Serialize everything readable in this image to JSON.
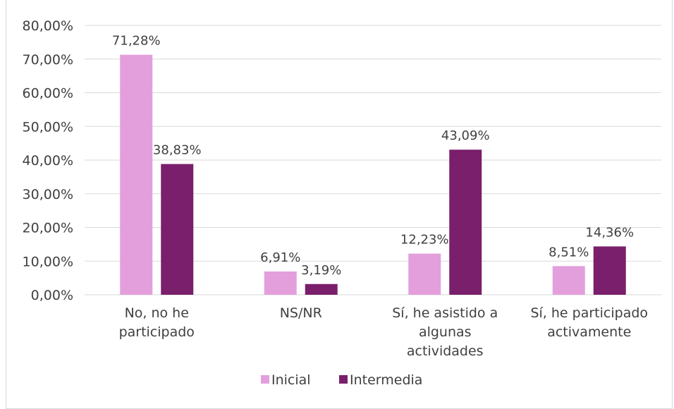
{
  "top_caption": "",
  "chart_data": {
    "type": "bar",
    "title": "",
    "xlabel": "",
    "ylabel": "",
    "ylim": [
      0,
      80
    ],
    "yticks": [
      "0,00%",
      "10,00%",
      "20,00%",
      "30,00%",
      "40,00%",
      "50,00%",
      "60,00%",
      "70,00%",
      "80,00%"
    ],
    "grid": true,
    "legend_position": "bottom",
    "categories": [
      [
        "No, no he",
        "participado"
      ],
      [
        "NS/NR"
      ],
      [
        "Sí, he asistido a",
        "algunas",
        "actividades"
      ],
      [
        "Sí, he participado",
        "activamente"
      ]
    ],
    "series": [
      {
        "name": "Inicial",
        "color": "#e39fdc",
        "values": [
          71.28,
          6.91,
          12.23,
          8.51
        ],
        "labels": [
          "71,28%",
          "6,91%",
          "12,23%",
          "8,51%"
        ]
      },
      {
        "name": "Intermedia",
        "color": "#7a1f6b",
        "values": [
          38.83,
          3.19,
          43.09,
          14.36
        ],
        "labels": [
          "38,83%",
          "3,19%",
          "43,09%",
          "14,36%"
        ]
      }
    ]
  }
}
